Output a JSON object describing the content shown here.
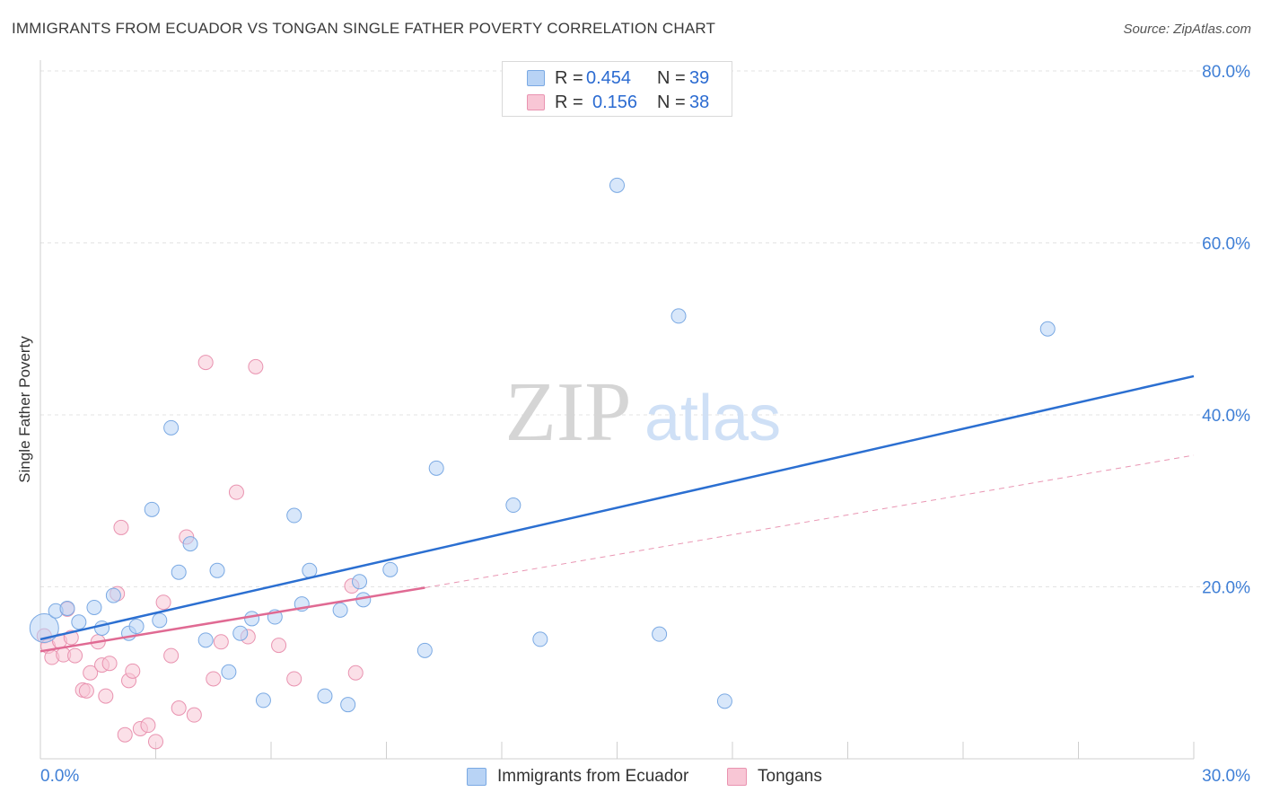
{
  "header": {
    "title": "IMMIGRANTS FROM ECUADOR VS TONGAN SINGLE FATHER POVERTY CORRELATION CHART",
    "source": "Source: ZipAtlas.com"
  },
  "watermark": {
    "zip": "ZIP",
    "atlas": "atlas"
  },
  "legend_top": {
    "rows": [
      {
        "r_label": "R =",
        "r_value": "0.454",
        "n_label": "N =",
        "n_value": "39"
      },
      {
        "r_label": "R =",
        "r_value": "0.156",
        "n_label": "N =",
        "n_value": "38"
      }
    ]
  },
  "legend_bottom": {
    "items": [
      {
        "label": "Immigrants from Ecuador"
      },
      {
        "label": "Tongans"
      }
    ]
  },
  "colors": {
    "blue_fill": "#b8d3f5",
    "blue_stroke": "#7aa9e3",
    "blue_line": "#2b6fd1",
    "pink_fill": "#f8c6d5",
    "pink_stroke": "#e993b0",
    "pink_line": "#e06a93",
    "axis_text": "#3f7fd6",
    "grid": "#e3e3e3"
  },
  "chart_data": {
    "type": "scatter",
    "title": "IMMIGRANTS FROM ECUADOR VS TONGAN SINGLE FATHER POVERTY CORRELATION CHART",
    "xlabel": "",
    "ylabel": "Single Father Poverty",
    "xlim": [
      0,
      30
    ],
    "ylim": [
      0,
      80
    ],
    "x_tick_labels": [
      "0.0%",
      "30.0%"
    ],
    "y_ticks": [
      20,
      40,
      60,
      80
    ],
    "y_tick_labels": [
      "20.0%",
      "40.0%",
      "60.0%",
      "80.0%"
    ],
    "grid": true,
    "legend_placement": "top-center and bottom",
    "series": [
      {
        "name": "Immigrants from Ecuador",
        "R": 0.454,
        "N": 39,
        "trend": {
          "x": [
            0,
            30
          ],
          "y": [
            13.9,
            44.5
          ]
        },
        "points": [
          [
            0.1,
            15.2
          ],
          [
            0.4,
            17.2
          ],
          [
            0.7,
            17.5
          ],
          [
            1.0,
            15.9
          ],
          [
            1.4,
            17.6
          ],
          [
            1.6,
            15.2
          ],
          [
            1.9,
            19.0
          ],
          [
            2.3,
            14.6
          ],
          [
            2.5,
            15.4
          ],
          [
            2.9,
            29.0
          ],
          [
            3.1,
            16.1
          ],
          [
            3.4,
            38.5
          ],
          [
            3.6,
            21.7
          ],
          [
            3.9,
            25.0
          ],
          [
            4.3,
            13.8
          ],
          [
            4.6,
            21.9
          ],
          [
            4.9,
            10.1
          ],
          [
            5.2,
            14.6
          ],
          [
            5.5,
            16.3
          ],
          [
            5.8,
            6.8
          ],
          [
            6.1,
            16.5
          ],
          [
            6.6,
            28.3
          ],
          [
            6.8,
            18.0
          ],
          [
            7.0,
            21.9
          ],
          [
            7.4,
            7.3
          ],
          [
            7.8,
            17.3
          ],
          [
            8.0,
            6.3
          ],
          [
            8.3,
            20.6
          ],
          [
            8.4,
            18.5
          ],
          [
            9.1,
            22.0
          ],
          [
            10.0,
            12.6
          ],
          [
            10.3,
            33.8
          ],
          [
            12.3,
            29.5
          ],
          [
            13.0,
            13.9
          ],
          [
            15.0,
            66.7
          ],
          [
            16.1,
            14.5
          ],
          [
            16.6,
            51.5
          ],
          [
            17.8,
            6.7
          ],
          [
            26.2,
            50.0
          ]
        ]
      },
      {
        "name": "Tongans",
        "R": 0.156,
        "N": 38,
        "trend": {
          "x": [
            0,
            10
          ],
          "y": [
            12.5,
            19.9
          ]
        },
        "trend_extension": {
          "x": [
            10,
            30
          ],
          "y": [
            19.9,
            35.3
          ]
        },
        "points": [
          [
            0.1,
            14.3
          ],
          [
            0.2,
            13.1
          ],
          [
            0.3,
            11.8
          ],
          [
            0.5,
            13.7
          ],
          [
            0.6,
            12.1
          ],
          [
            0.7,
            17.4
          ],
          [
            0.8,
            14.1
          ],
          [
            0.9,
            12.0
          ],
          [
            1.1,
            8.0
          ],
          [
            1.2,
            7.9
          ],
          [
            1.3,
            10.0
          ],
          [
            1.5,
            13.6
          ],
          [
            1.6,
            10.9
          ],
          [
            1.7,
            7.3
          ],
          [
            1.8,
            11.1
          ],
          [
            2.0,
            19.2
          ],
          [
            2.1,
            26.9
          ],
          [
            2.2,
            2.8
          ],
          [
            2.3,
            9.1
          ],
          [
            2.4,
            10.2
          ],
          [
            2.6,
            3.5
          ],
          [
            2.8,
            3.9
          ],
          [
            3.0,
            2.0
          ],
          [
            3.2,
            18.2
          ],
          [
            3.4,
            12.0
          ],
          [
            3.6,
            5.9
          ],
          [
            3.8,
            25.8
          ],
          [
            4.0,
            5.1
          ],
          [
            4.3,
            46.1
          ],
          [
            4.5,
            9.3
          ],
          [
            4.7,
            13.6
          ],
          [
            5.1,
            31.0
          ],
          [
            5.4,
            14.2
          ],
          [
            5.6,
            45.6
          ],
          [
            6.2,
            13.2
          ],
          [
            6.6,
            9.3
          ],
          [
            8.1,
            20.1
          ],
          [
            8.2,
            10.0
          ]
        ]
      }
    ]
  }
}
